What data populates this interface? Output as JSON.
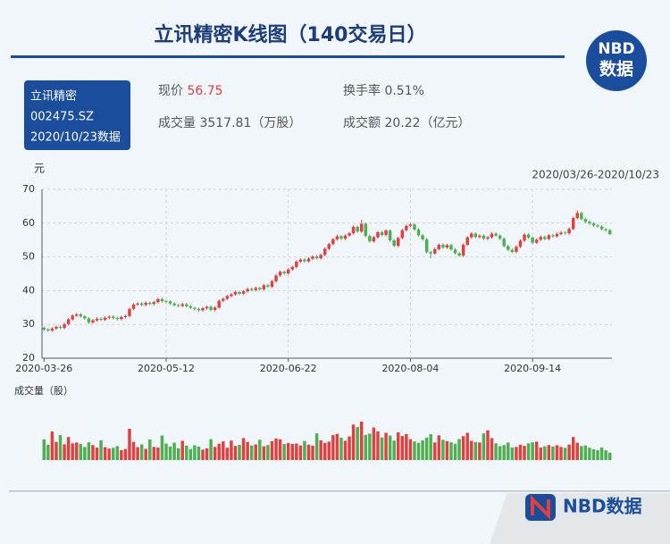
{
  "header": {
    "title": "立讯精密K线图（140交易日）"
  },
  "logos": {
    "top_brand": "NBD",
    "top_sub": "数据",
    "bottom": "NBD数据"
  },
  "info": {
    "name": "立讯精密",
    "code": "002475.SZ",
    "date": "2020/10/23数据",
    "price_label": "现价",
    "price": 56.75,
    "turnover_label": "换手率",
    "turnover": "0.51%",
    "volume_label": "成交量",
    "volume": 3517.81,
    "volume_unit": "（万股）",
    "amount_label": "成交额",
    "amount": 20.22,
    "amount_unit": "（亿元）"
  },
  "chart_data": [
    {
      "type": "candlestick",
      "y_label": "元",
      "subtitle": "2020/03/26-2020/10/23",
      "grid": true,
      "up_color": "#e0403f",
      "down_color": "#4caf50",
      "ylim": [
        20,
        70
      ],
      "yticks": [
        20,
        30,
        40,
        50,
        60,
        70
      ],
      "categories": [
        "2020-03-26",
        null,
        null,
        null,
        null,
        null,
        null,
        null,
        null,
        null,
        null,
        null,
        null,
        null,
        null,
        null,
        null,
        null,
        null,
        null,
        null,
        null,
        null,
        null,
        null,
        null,
        null,
        null,
        null,
        null,
        "2020-05-12",
        null,
        null,
        null,
        null,
        null,
        null,
        null,
        null,
        null,
        null,
        null,
        null,
        null,
        null,
        null,
        null,
        null,
        null,
        null,
        null,
        null,
        null,
        null,
        null,
        null,
        null,
        null,
        null,
        null,
        "2020-06-22",
        null,
        null,
        null,
        null,
        null,
        null,
        null,
        null,
        null,
        null,
        null,
        null,
        null,
        null,
        null,
        null,
        null,
        null,
        null,
        null,
        null,
        null,
        null,
        null,
        null,
        null,
        null,
        null,
        null,
        "2020-08-04",
        null,
        null,
        null,
        null,
        null,
        null,
        null,
        null,
        null,
        null,
        null,
        null,
        null,
        null,
        null,
        null,
        null,
        null,
        null,
        null,
        null,
        null,
        null,
        null,
        null,
        null,
        null,
        null,
        null,
        "2020-09-14",
        null,
        null,
        null,
        null,
        null,
        null,
        null,
        null,
        null,
        null,
        null,
        null,
        null,
        null,
        null,
        null,
        null,
        null,
        null
      ],
      "open": [
        29.0,
        28.5,
        28.2,
        28.8,
        29.3,
        29.0,
        30.1,
        31.5,
        32.6,
        33.0,
        32.4,
        31.8,
        30.6,
        31.2,
        31.7,
        31.4,
        32.0,
        32.3,
        31.9,
        31.6,
        32.2,
        32.5,
        34.6,
        35.9,
        36.2,
        35.8,
        36.4,
        36.1,
        36.6,
        37.5,
        36.9,
        36.8,
        36.2,
        35.7,
        35.5,
        36.0,
        35.4,
        34.9,
        34.6,
        34.2,
        34.8,
        35.2,
        34.3,
        35.0,
        37.0,
        37.6,
        38.4,
        38.9,
        39.6,
        39.1,
        39.8,
        40.5,
        40.2,
        40.8,
        40.4,
        41.6,
        41.2,
        42.8,
        44.5,
        45.6,
        45.1,
        46.3,
        47.0,
        48.6,
        49.2,
        48.7,
        49.5,
        50.1,
        49.6,
        50.6,
        52.4,
        53.8,
        55.2,
        56.1,
        55.4,
        56.3,
        57.0,
        58.9,
        57.5,
        59.8,
        56.2,
        54.6,
        55.8,
        57.3,
        56.5,
        57.8,
        54.9,
        53.3,
        55.6,
        57.9,
        59.2,
        59.6,
        58.1,
        56.4,
        55.2,
        51.4,
        51.0,
        52.3,
        53.6,
        52.8,
        53.5,
        52.2,
        51.1,
        50.4,
        53.6,
        55.8,
        56.9,
        55.9,
        56.3,
        55.4,
        55.8,
        56.9,
        56.3,
        55.4,
        53.2,
        52.1,
        51.5,
        53.0,
        54.8,
        56.6,
        55.7,
        54.2,
        55.1,
        55.9,
        55.3,
        56.4,
        56.1,
        56.8,
        57.2,
        57.0,
        58.3,
        61.5,
        63.0,
        61.2,
        60.4,
        59.9,
        59.3,
        59.0,
        58.2,
        57.9
      ],
      "high": [
        29.4,
        28.9,
        29.2,
        29.7,
        29.7,
        30.5,
        31.9,
        33.0,
        33.4,
        33.4,
        32.8,
        32.2,
        31.6,
        32.1,
        32.1,
        32.4,
        32.7,
        32.7,
        32.3,
        32.6,
        32.9,
        35.0,
        36.3,
        36.6,
        36.6,
        36.8,
        36.8,
        37.0,
        37.9,
        37.9,
        37.3,
        37.2,
        36.6,
        36.1,
        36.4,
        36.4,
        35.8,
        35.3,
        35.0,
        35.2,
        35.6,
        35.6,
        35.4,
        37.4,
        38.0,
        38.8,
        39.3,
        40.0,
        40.0,
        40.2,
        40.9,
        40.9,
        41.2,
        41.2,
        42.0,
        42.0,
        43.2,
        44.9,
        46.0,
        46.0,
        46.7,
        47.4,
        49.0,
        49.6,
        49.6,
        49.9,
        50.5,
        50.5,
        51.0,
        52.8,
        54.2,
        55.6,
        56.5,
        56.5,
        56.7,
        57.4,
        59.3,
        59.3,
        61.0,
        60.2,
        56.6,
        56.2,
        57.7,
        57.7,
        58.2,
        58.2,
        55.3,
        56.0,
        58.3,
        59.6,
        60.0,
        60.0,
        58.5,
        56.8,
        55.6,
        51.8,
        52.7,
        54.0,
        54.0,
        53.9,
        53.9,
        52.6,
        51.5,
        54.0,
        56.2,
        57.3,
        57.3,
        56.7,
        56.7,
        56.2,
        57.3,
        57.3,
        56.7,
        55.8,
        53.6,
        52.5,
        53.4,
        55.2,
        57.0,
        57.0,
        56.1,
        55.5,
        56.3,
        56.3,
        56.8,
        56.8,
        57.2,
        57.6,
        57.6,
        58.7,
        61.9,
        63.8,
        63.4,
        61.6,
        60.8,
        60.3,
        59.7,
        59.4,
        58.6,
        58.3
      ],
      "low": [
        28.1,
        27.8,
        27.8,
        28.4,
        28.6,
        28.6,
        29.7,
        31.1,
        32.2,
        32.0,
        31.4,
        30.2,
        30.2,
        30.8,
        31.0,
        31.0,
        31.6,
        31.5,
        31.2,
        31.2,
        31.8,
        32.1,
        34.2,
        35.5,
        35.4,
        35.4,
        35.7,
        35.7,
        36.2,
        36.5,
        36.4,
        35.8,
        35.3,
        35.1,
        35.1,
        35.0,
        34.5,
        34.2,
        33.8,
        33.8,
        34.4,
        33.9,
        33.9,
        34.6,
        36.6,
        37.2,
        38.0,
        38.5,
        38.7,
        38.7,
        39.4,
        39.8,
        39.8,
        40.0,
        40.0,
        40.8,
        40.8,
        42.4,
        44.1,
        44.7,
        44.7,
        45.9,
        46.6,
        48.2,
        48.3,
        48.3,
        49.1,
        49.2,
        49.2,
        50.2,
        52.0,
        53.4,
        54.8,
        55.0,
        55.0,
        55.9,
        56.6,
        57.1,
        57.1,
        55.8,
        54.2,
        54.2,
        55.4,
        56.1,
        56.1,
        54.5,
        52.9,
        52.9,
        55.2,
        57.5,
        58.8,
        57.7,
        56.0,
        54.8,
        51.0,
        49.6,
        50.6,
        51.9,
        52.4,
        52.4,
        51.8,
        50.7,
        50.0,
        50.0,
        53.2,
        55.4,
        55.5,
        55.5,
        55.0,
        55.0,
        55.4,
        55.9,
        55.0,
        52.8,
        51.7,
        51.1,
        51.1,
        52.6,
        54.4,
        55.3,
        53.8,
        53.8,
        54.7,
        54.9,
        54.9,
        55.7,
        55.7,
        56.4,
        56.6,
        56.6,
        57.9,
        61.1,
        60.8,
        60.0,
        59.5,
        58.9,
        58.6,
        57.8,
        57.5,
        56.4
      ],
      "close": [
        28.5,
        28.2,
        28.8,
        29.3,
        29.0,
        30.1,
        31.5,
        32.6,
        33.0,
        32.4,
        31.8,
        30.6,
        31.2,
        31.7,
        31.4,
        32.0,
        32.3,
        31.9,
        31.6,
        32.2,
        32.5,
        34.6,
        35.9,
        36.2,
        35.8,
        36.4,
        36.1,
        36.6,
        37.5,
        36.9,
        36.8,
        36.2,
        35.7,
        35.5,
        36.0,
        35.4,
        34.9,
        34.6,
        34.2,
        34.8,
        35.2,
        34.3,
        35.0,
        37.0,
        37.6,
        38.4,
        38.9,
        39.6,
        39.1,
        39.8,
        40.5,
        40.2,
        40.8,
        40.4,
        41.6,
        41.2,
        42.8,
        44.5,
        45.6,
        45.1,
        46.3,
        47.0,
        48.6,
        49.2,
        48.7,
        49.5,
        50.1,
        49.6,
        50.6,
        52.4,
        53.8,
        55.2,
        56.1,
        55.4,
        56.3,
        57.0,
        58.9,
        57.5,
        59.8,
        56.2,
        54.6,
        55.8,
        57.3,
        56.5,
        57.8,
        54.9,
        53.3,
        55.6,
        57.9,
        59.2,
        59.6,
        58.1,
        56.4,
        55.2,
        51.4,
        51.0,
        52.3,
        53.6,
        52.8,
        53.5,
        52.2,
        51.1,
        50.4,
        53.6,
        55.8,
        56.9,
        55.9,
        56.3,
        55.4,
        55.8,
        56.9,
        56.3,
        55.4,
        53.2,
        52.1,
        51.5,
        53.0,
        54.8,
        56.6,
        55.7,
        54.2,
        55.1,
        55.9,
        55.3,
        56.4,
        56.1,
        56.8,
        57.2,
        57.0,
        58.3,
        61.5,
        63.0,
        61.2,
        60.4,
        59.9,
        59.3,
        59.0,
        58.2,
        57.9,
        56.75
      ]
    },
    {
      "type": "bar",
      "title": "成交量（股）",
      "ylim": [
        0,
        22000
      ],
      "values": [
        9800,
        7200,
        13500,
        8600,
        11800,
        7400,
        10900,
        7900,
        8300,
        7600,
        6200,
        8400,
        7100,
        5900,
        9300,
        6100,
        5400,
        5800,
        6600,
        4700,
        5200,
        14800,
        8600,
        6100,
        7400,
        5300,
        9700,
        6200,
        5900,
        11600,
        7800,
        6400,
        8200,
        5600,
        9100,
        6800,
        5200,
        7000,
        6300,
        4900,
        5500,
        9900,
        6200,
        7700,
        8800,
        5800,
        9200,
        6700,
        7200,
        10400,
        8600,
        6900,
        7400,
        9600,
        6500,
        7100,
        8900,
        10200,
        9800,
        7600,
        8100,
        7600,
        7800,
        6900,
        9000,
        7300,
        6800,
        12600,
        9300,
        8100,
        8700,
        11800,
        12400,
        10600,
        9100,
        11200,
        16800,
        15600,
        18200,
        11900,
        12500,
        15400,
        13600,
        10700,
        12900,
        11600,
        9200,
        13100,
        11400,
        12300,
        9900,
        8800,
        8100,
        9300,
        10600,
        12200,
        8300,
        11700,
        9600,
        8900,
        8400,
        7700,
        9900,
        11300,
        12900,
        9100,
        8500,
        8300,
        12600,
        14100,
        10400,
        7900,
        6600,
        7100,
        8300,
        5900,
        6200,
        7300,
        6700,
        7900,
        8400,
        8700,
        5900,
        6500,
        7100,
        6400,
        7000,
        6200,
        5800,
        7300,
        10900,
        8200,
        6600,
        6900,
        5800,
        5100,
        4700,
        5900,
        4600,
        3517.81
      ]
    }
  ]
}
